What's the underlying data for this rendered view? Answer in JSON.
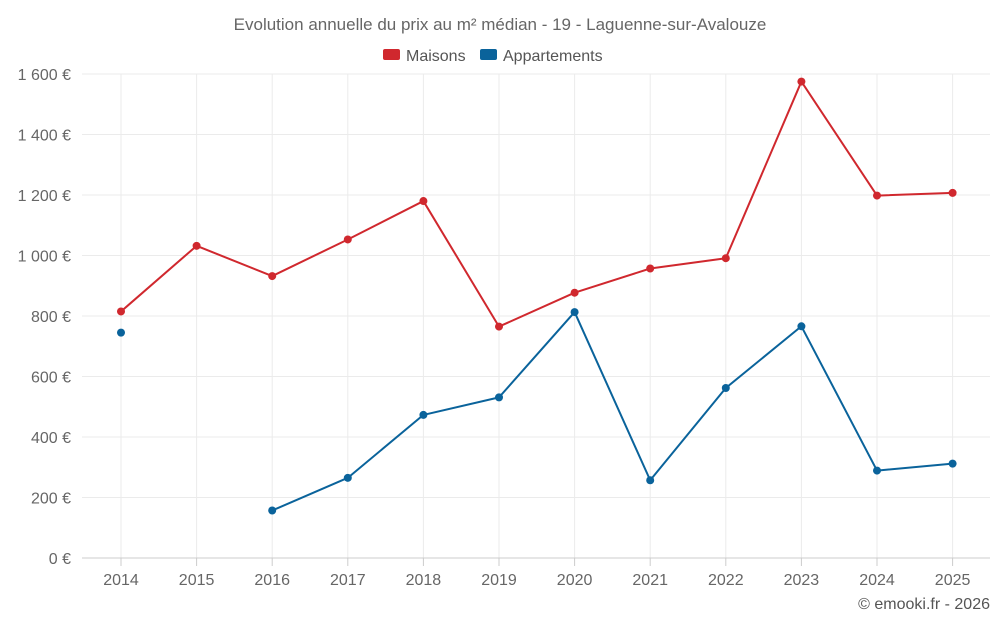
{
  "chart_data": {
    "type": "line",
    "title": "Evolution annuelle du prix au m² médian - 19 - Laguenne-sur-Avalouze",
    "categories": [
      "2014",
      "2015",
      "2016",
      "2017",
      "2018",
      "2019",
      "2020",
      "2021",
      "2022",
      "2023",
      "2024",
      "2025"
    ],
    "series": [
      {
        "name": "Maisons",
        "color": "#d0282e",
        "values": [
          815,
          1032,
          932,
          1053,
          1180,
          765,
          877,
          957,
          991,
          1575,
          1198,
          1207
        ]
      },
      {
        "name": "Appartements",
        "color": "#0a639b",
        "values": [
          745,
          null,
          157,
          265,
          473,
          531,
          813,
          257,
          562,
          766,
          289,
          312
        ]
      }
    ],
    "ylim": [
      0,
      1600
    ],
    "yticks": [
      0,
      200,
      400,
      600,
      800,
      1000,
      1200,
      1400,
      1600
    ],
    "ytick_labels": [
      "0 €",
      "200 €",
      "400 €",
      "600 €",
      "800 €",
      "1 000 €",
      "1 200 €",
      "1 400 €",
      "1 600 €"
    ],
    "xlabel": "",
    "ylabel": "",
    "grid": true,
    "legend": "top-center"
  },
  "credit": "© emooki.fr - 2026"
}
